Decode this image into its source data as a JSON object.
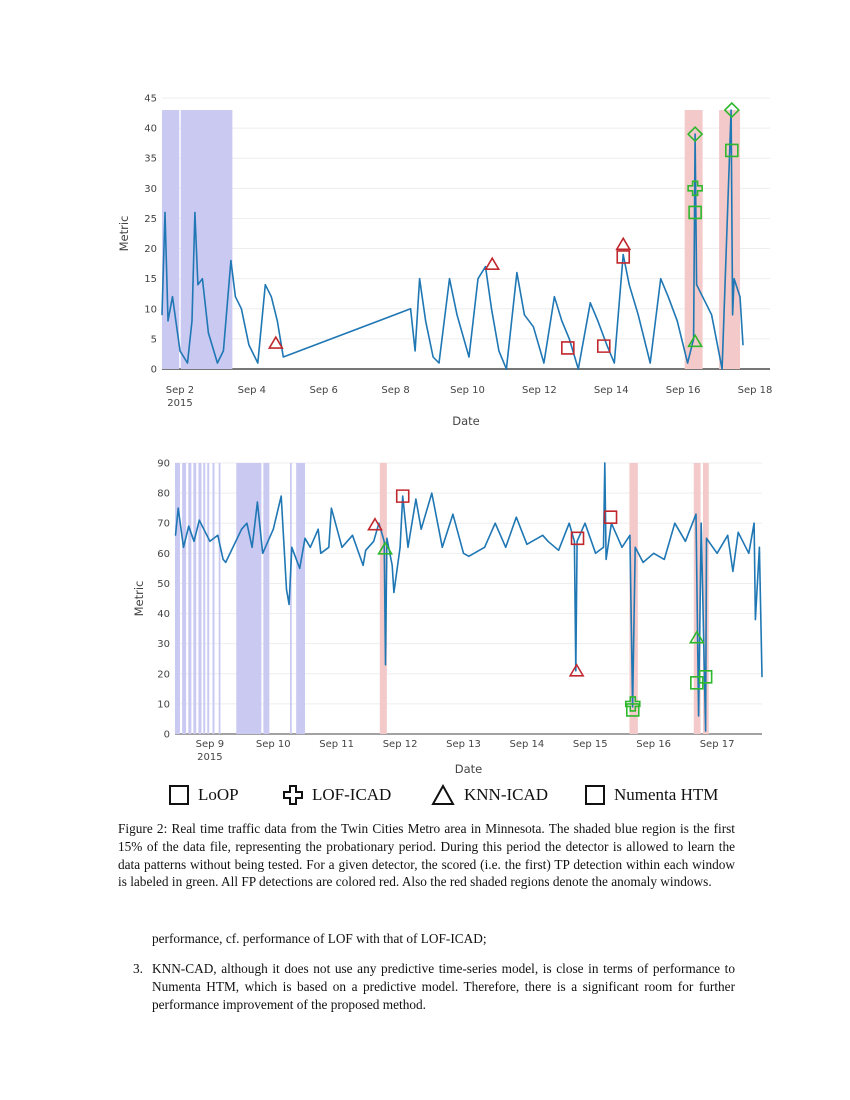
{
  "chart_data": [
    {
      "type": "line",
      "xlabel": "Date",
      "ylabel": "Metric",
      "xlim": [
        "2015-09-01T12:00",
        "2015-09-18T10:00"
      ],
      "ylim": [
        0,
        45
      ],
      "grid": true,
      "x_ticks": [
        "Sep 2",
        "Sep 4",
        "Sep 6",
        "Sep 8",
        "Sep 10",
        "Sep 12",
        "Sep 14",
        "Sep 16",
        "Sep 18"
      ],
      "x_tick_year": "2015",
      "y_ticks": [
        "0",
        "5",
        "10",
        "15",
        "20",
        "25",
        "30",
        "35",
        "40",
        "45"
      ],
      "line_color": "#1f77b4",
      "series": [
        {
          "x": [
            "2015-09-01T12:00",
            "2015-09-01T14:00",
            "2015-09-01T16:00",
            "2015-09-01T19:00",
            "2015-09-02T00:00",
            "2015-09-02T05:00",
            "2015-09-02T08:00",
            "2015-09-02T10:00",
            "2015-09-02T12:00",
            "2015-09-02T15:00",
            "2015-09-02T19:00",
            "2015-09-03T01:00",
            "2015-09-03T05:00",
            "2015-09-03T10:00",
            "2015-09-03T13:00",
            "2015-09-03T17:00",
            "2015-09-03T22:00",
            "2015-09-04T04:00",
            "2015-09-04T09:00",
            "2015-09-04T13:00",
            "2015-09-04T17:00",
            "2015-09-04T21:00",
            "2015-09-08T10:00",
            "2015-09-08T13:00",
            "2015-09-08T16:00",
            "2015-09-08T20:00",
            "2015-09-09T01:00",
            "2015-09-09T05:00",
            "2015-09-09T12:00",
            "2015-09-09T17:00",
            "2015-09-10T01:00",
            "2015-09-10T07:00",
            "2015-09-10T12:00",
            "2015-09-10T16:00",
            "2015-09-10T21:00",
            "2015-09-11T02:00",
            "2015-09-11T09:00",
            "2015-09-11T14:00",
            "2015-09-11T20:00",
            "2015-09-12T03:00",
            "2015-09-12T10:00",
            "2015-09-12T15:00",
            "2015-09-12T20:00",
            "2015-09-13T02:00",
            "2015-09-13T10:00",
            "2015-09-13T15:00",
            "2015-09-13T21:00",
            "2015-09-14T02:00",
            "2015-09-14T08:00",
            "2015-09-14T12:00",
            "2015-09-14T18:00",
            "2015-09-15T02:00",
            "2015-09-15T09:00",
            "2015-09-15T14:00",
            "2015-09-15T20:00",
            "2015-09-16T03:00",
            "2015-09-16T07:00",
            "2015-09-16T08:00",
            "2015-09-16T09:00",
            "2015-09-16T13:00",
            "2015-09-16T19:00",
            "2015-09-17T02:00",
            "2015-09-17T08:00",
            "2015-09-17T09:00",
            "2015-09-17T10:00",
            "2015-09-17T14:00",
            "2015-09-17T16:00"
          ],
          "y": [
            9,
            26,
            8,
            12,
            3,
            1,
            8,
            26,
            14,
            15,
            6,
            1,
            3,
            18,
            12,
            10,
            4,
            1,
            14,
            12,
            8,
            2,
            10,
            3,
            15,
            8,
            2,
            1,
            15,
            9,
            2,
            15,
            17,
            10,
            3,
            0,
            16,
            9,
            7,
            1,
            12,
            8,
            5,
            0,
            11,
            8,
            4,
            1,
            19,
            14,
            9,
            1,
            15,
            12,
            8,
            1,
            5,
            39,
            14,
            12,
            9,
            0,
            43,
            9,
            15,
            12,
            4
          ]
        }
      ],
      "shaded_regions": [
        {
          "kind": "probationary",
          "color": "#c9c9f2",
          "from": "2015-09-01T12:00",
          "to": "2015-09-01T23:30"
        },
        {
          "kind": "probationary",
          "color": "#c9c9f2",
          "from": "2015-09-02T00:30",
          "to": "2015-09-03T11:00"
        },
        {
          "kind": "anomaly-window",
          "color": "#f3c9c9",
          "from": "2015-09-16T01:00",
          "to": "2015-09-16T13:00"
        },
        {
          "kind": "anomaly-window",
          "color": "#f3c9c9",
          "from": "2015-09-17T00:00",
          "to": "2015-09-17T14:00"
        }
      ],
      "markers": [
        {
          "detector": "KNN-ICAD",
          "symbol": "triangle",
          "result": "FP",
          "x": "2015-09-04T16:00",
          "y": 4.3
        },
        {
          "detector": "KNN-ICAD",
          "symbol": "triangle",
          "result": "FP",
          "x": "2015-09-10T16:30",
          "y": 17.4
        },
        {
          "detector": "Numenta HTM",
          "symbol": "square",
          "result": "FP",
          "x": "2015-09-12T19:00",
          "y": 3.5
        },
        {
          "detector": "Numenta HTM",
          "symbol": "square",
          "result": "FP",
          "x": "2015-09-13T19:00",
          "y": 3.8
        },
        {
          "detector": "KNN-ICAD",
          "symbol": "triangle",
          "result": "FP",
          "x": "2015-09-14T08:00",
          "y": 20.7
        },
        {
          "detector": "Numenta HTM",
          "symbol": "square",
          "result": "FP",
          "x": "2015-09-14T08:00",
          "y": 18.6
        },
        {
          "detector": "LoOP",
          "symbol": "diamond",
          "result": "TP",
          "x": "2015-09-16T08:00",
          "y": 39
        },
        {
          "detector": "LOF-ICAD",
          "symbol": "cross",
          "result": "TP",
          "x": "2015-09-16T08:00",
          "y": 30
        },
        {
          "detector": "Numenta HTM",
          "symbol": "square",
          "result": "TP",
          "x": "2015-09-16T08:00",
          "y": 26
        },
        {
          "detector": "KNN-ICAD",
          "symbol": "triangle",
          "result": "TP",
          "x": "2015-09-16T08:00",
          "y": 4.6
        },
        {
          "detector": "LoOP",
          "symbol": "diamond",
          "result": "TP",
          "x": "2015-09-17T08:30",
          "y": 43
        },
        {
          "detector": "Numenta HTM",
          "symbol": "square",
          "result": "TP",
          "x": "2015-09-17T08:30",
          "y": 36.3
        }
      ]
    },
    {
      "type": "line",
      "xlabel": "Date",
      "ylabel": "Metric",
      "xlim": [
        "2015-09-08T10:48",
        "2015-09-17T17:00"
      ],
      "ylim": [
        0,
        90
      ],
      "grid": true,
      "x_ticks": [
        "Sep 9",
        "Sep 10",
        "Sep 11",
        "Sep 12",
        "Sep 13",
        "Sep 14",
        "Sep 15",
        "Sep 16",
        "Sep 17"
      ],
      "x_tick_year": "2015",
      "y_ticks": [
        "0",
        "10",
        "20",
        "30",
        "40",
        "50",
        "60",
        "70",
        "80",
        "90"
      ],
      "line_color": "#1f77b4",
      "series": [
        {
          "x": [
            "2015-09-08T11:00",
            "2015-09-08T12:00",
            "2015-09-08T14:00",
            "2015-09-08T16:00",
            "2015-09-08T18:00",
            "2015-09-08T20:00",
            "2015-09-09T00:00",
            "2015-09-09T03:00",
            "2015-09-09T05:00",
            "2015-09-09T06:00",
            "2015-09-09T12:00",
            "2015-09-09T14:00",
            "2015-09-09T16:00",
            "2015-09-09T18:00",
            "2015-09-09T20:00",
            "2015-09-10T00:00",
            "2015-09-10T03:00",
            "2015-09-10T05:00",
            "2015-09-10T06:00",
            "2015-09-10T07:00",
            "2015-09-10T10:00",
            "2015-09-10T12:00",
            "2015-09-10T14:00",
            "2015-09-10T17:00",
            "2015-09-10T18:00",
            "2015-09-10T21:00",
            "2015-09-10T22:00",
            "2015-09-11T02:00",
            "2015-09-11T06:00",
            "2015-09-11T10:00",
            "2015-09-11T11:00",
            "2015-09-11T14:00",
            "2015-09-11T16:00",
            "2015-09-11T18:00",
            "2015-09-11T18:30",
            "2015-09-11T19:00",
            "2015-09-11T21:00",
            "2015-09-11T21:40",
            "2015-09-12T00:00",
            "2015-09-12T01:00",
            "2015-09-12T03:00",
            "2015-09-12T06:00",
            "2015-09-12T08:00",
            "2015-09-12T12:00",
            "2015-09-12T16:00",
            "2015-09-12T20:00",
            "2015-09-13T00:00",
            "2015-09-13T02:00",
            "2015-09-13T08:00",
            "2015-09-13T12:00",
            "2015-09-13T16:00",
            "2015-09-13T20:00",
            "2015-09-14T00:00",
            "2015-09-14T06:00",
            "2015-09-14T08:00",
            "2015-09-14T12:00",
            "2015-09-14T16:00",
            "2015-09-14T18:00",
            "2015-09-14T18:30",
            "2015-09-14T19:00",
            "2015-09-14T22:00",
            "2015-09-15T02:00",
            "2015-09-15T05:00",
            "2015-09-15T05:30",
            "2015-09-15T06:00",
            "2015-09-15T08:00",
            "2015-09-15T12:00",
            "2015-09-15T15:00",
            "2015-09-15T16:00",
            "2015-09-15T17:00",
            "2015-09-15T20:00",
            "2015-09-16T00:00",
            "2015-09-16T04:00",
            "2015-09-16T08:00",
            "2015-09-16T12:00",
            "2015-09-16T16:00",
            "2015-09-16T17:00",
            "2015-09-16T18:00",
            "2015-09-16T19:40",
            "2015-09-16T20:00",
            "2015-09-17T00:00",
            "2015-09-17T04:00",
            "2015-09-17T06:00",
            "2015-09-17T08:00",
            "2015-09-17T12:00",
            "2015-09-17T14:00",
            "2015-09-17T14:30",
            "2015-09-17T16:00",
            "2015-09-17T17:00"
          ],
          "y": [
            66,
            75,
            62,
            69,
            64,
            71,
            64,
            66,
            58,
            57,
            68,
            70,
            62,
            77,
            60,
            68,
            79,
            48,
            43,
            62,
            55,
            65,
            62,
            68,
            60,
            62,
            75,
            62,
            66,
            56,
            61,
            64,
            70,
            64,
            23,
            65,
            56,
            47,
            62,
            79,
            62,
            78,
            68,
            80,
            62,
            73,
            60,
            59,
            62,
            70,
            62,
            72,
            63,
            66,
            64,
            61,
            70,
            64,
            21,
            64,
            70,
            60,
            62,
            90,
            58,
            70,
            62,
            66,
            9,
            62,
            57,
            60,
            58,
            70,
            64,
            73,
            6,
            70,
            1,
            65,
            60,
            66,
            54,
            67,
            60,
            70,
            38,
            62,
            19
          ]
        }
      ],
      "shaded_regions": [
        {
          "kind": "probationary",
          "color": "#c9c9f2",
          "from": "2015-09-08T10:48",
          "to": "2015-09-08T12:40"
        },
        {
          "kind": "probationary",
          "color": "#c9c9f2",
          "from": "2015-09-08T13:30",
          "to": "2015-09-08T15:00"
        },
        {
          "kind": "probationary",
          "color": "#c9c9f2",
          "from": "2015-09-08T15:50",
          "to": "2015-09-08T17:00"
        },
        {
          "kind": "probationary",
          "color": "#c9c9f2",
          "from": "2015-09-08T17:45",
          "to": "2015-09-08T18:50"
        },
        {
          "kind": "probationary",
          "color": "#c9c9f2",
          "from": "2015-09-08T19:40",
          "to": "2015-09-08T20:50"
        },
        {
          "kind": "probationary",
          "color": "#c9c9f2",
          "from": "2015-09-08T21:30",
          "to": "2015-09-08T22:15"
        },
        {
          "kind": "probationary",
          "color": "#c9c9f2",
          "from": "2015-09-08T23:00",
          "to": "2015-09-08T23:45"
        },
        {
          "kind": "probationary",
          "color": "#c9c9f2",
          "from": "2015-09-09T01:00",
          "to": "2015-09-09T01:45"
        },
        {
          "kind": "probationary",
          "color": "#c9c9f2",
          "from": "2015-09-09T03:20",
          "to": "2015-09-09T04:00"
        },
        {
          "kind": "probationary",
          "color": "#c9c9f2",
          "from": "2015-09-09T10:00",
          "to": "2015-09-09T19:30"
        },
        {
          "kind": "probationary",
          "color": "#c9c9f2",
          "from": "2015-09-09T20:15",
          "to": "2015-09-09T22:30"
        },
        {
          "kind": "probationary",
          "color": "#c9c9f2",
          "from": "2015-09-10T06:20",
          "to": "2015-09-10T07:00"
        },
        {
          "kind": "probationary",
          "color": "#c9c9f2",
          "from": "2015-09-10T08:40",
          "to": "2015-09-10T12:00"
        },
        {
          "kind": "anomaly-window",
          "color": "#f3c9c9",
          "from": "2015-09-11T16:20",
          "to": "2015-09-11T19:00"
        },
        {
          "kind": "anomaly-window",
          "color": "#f3c9c9",
          "from": "2015-09-15T14:50",
          "to": "2015-09-15T18:00"
        },
        {
          "kind": "anomaly-window",
          "color": "#f3c9c9",
          "from": "2015-09-16T15:10",
          "to": "2015-09-16T17:45"
        },
        {
          "kind": "anomaly-window",
          "color": "#f3c9c9",
          "from": "2015-09-16T18:40",
          "to": "2015-09-16T20:50"
        }
      ],
      "markers": [
        {
          "detector": "KNN-ICAD",
          "symbol": "triangle",
          "result": "FP",
          "x": "2015-09-11T14:30",
          "y": 69.5
        },
        {
          "detector": "KNN-ICAD",
          "symbol": "triangle",
          "result": "TP",
          "x": "2015-09-11T18:20",
          "y": 61.5
        },
        {
          "detector": "Numenta HTM",
          "symbol": "square",
          "result": "FP",
          "x": "2015-09-12T01:00",
          "y": 79
        },
        {
          "detector": "Numenta HTM",
          "symbol": "square",
          "result": "FP",
          "x": "2015-09-14T19:10",
          "y": 65
        },
        {
          "detector": "KNN-ICAD",
          "symbol": "triangle",
          "result": "FP",
          "x": "2015-09-14T18:50",
          "y": 21
        },
        {
          "detector": "Numenta HTM",
          "symbol": "square",
          "result": "FP",
          "x": "2015-09-15T07:40",
          "y": 72
        },
        {
          "detector": "LOF-ICAD",
          "symbol": "cross",
          "result": "TP",
          "x": "2015-09-15T16:05",
          "y": 10
        },
        {
          "detector": "Numenta HTM",
          "symbol": "square",
          "result": "TP",
          "x": "2015-09-15T16:05",
          "y": 8
        },
        {
          "detector": "KNN-ICAD",
          "symbol": "triangle",
          "result": "TP",
          "x": "2015-09-16T16:20",
          "y": 32
        },
        {
          "detector": "Numenta HTM",
          "symbol": "square",
          "result": "TP",
          "x": "2015-09-16T16:20",
          "y": 17
        },
        {
          "detector": "Numenta HTM",
          "symbol": "square",
          "result": "TP",
          "x": "2015-09-16T19:40",
          "y": 19
        }
      ]
    }
  ],
  "colors": {
    "tp": "#2eb82e",
    "fp": "#c0282d",
    "line": "#1f77b4"
  },
  "legend": [
    {
      "label": "LoOP",
      "icon": "square"
    },
    {
      "label": "LOF-ICAD",
      "icon": "cross"
    },
    {
      "label": "KNN-ICAD",
      "icon": "triangle"
    },
    {
      "label": "Numenta HTM",
      "icon": "square"
    }
  ],
  "caption": "Figure 2: Real time traffic data from the Twin Cities Metro area in Minnesota. The shaded blue region is the first 15% of the data file, representing the probationary period. During this period the detector is allowed to learn the data patterns without being tested. For a given detector, the scored (i.e. the first) TP detection within each window is labeled in green. All FP detections are colored red. Also the red shaded regions denote the anomaly windows.",
  "body": {
    "continuation": "performance, cf. performance of LOF with that of LOF-ICAD;",
    "item_number": "3.",
    "item_text": "KNN-CAD, although it does not use any predictive time-series model, is close in terms of performance to Numenta HTM, which is based on a predictive model. Therefore, there is a significant room for further performance improvement of the proposed method."
  }
}
